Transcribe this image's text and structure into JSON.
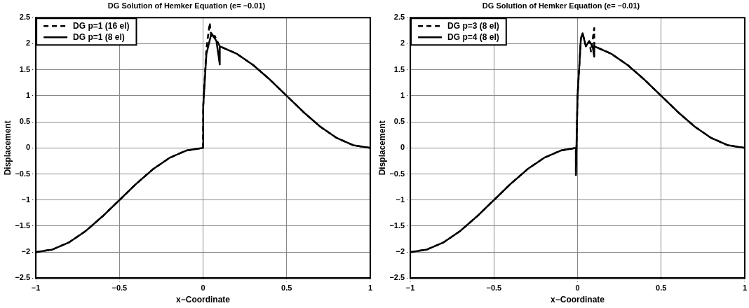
{
  "chart_data": [
    {
      "type": "line",
      "title": "DG Solution of Hemker Equation (e= −0.01)",
      "xlabel": "x−Coordinate",
      "ylabel": "Displacement",
      "xlim": [
        -1,
        1
      ],
      "ylim": [
        -2.5,
        2.5
      ],
      "xticks": [
        -1,
        -0.5,
        0,
        0.5,
        1
      ],
      "yticks": [
        -2.5,
        -2,
        -1.5,
        -1,
        -0.5,
        0,
        0.5,
        1,
        1.5,
        2,
        2.5
      ],
      "grid": true,
      "legend": "top left",
      "marker": "none",
      "series": [
        {
          "name": "DG p=1 (16 el)",
          "color": "#000000",
          "line_style": "dashed",
          "x": [
            -1,
            -0.9,
            -0.8,
            -0.7,
            -0.6,
            -0.5,
            -0.4,
            -0.3,
            -0.2,
            -0.1,
            0,
            0.001,
            0.02,
            0.04,
            0.05,
            0.07,
            0.1,
            0.2,
            0.3,
            0.4,
            0.5,
            0.6,
            0.7,
            0.8,
            0.9,
            1
          ],
          "values": [
            -2,
            -1.95,
            -1.81,
            -1.59,
            -1.31,
            -1,
            -0.69,
            -0.41,
            -0.19,
            -0.05,
            0,
            0.8,
            1.9,
            2.4,
            2.1,
            2.15,
            1.95,
            1.81,
            1.59,
            1.31,
            1,
            0.69,
            0.41,
            0.19,
            0.05,
            0
          ]
        },
        {
          "name": "DG p=1 (8 el)",
          "color": "#000000",
          "line_style": "solid",
          "x": [
            -1,
            -0.9,
            -0.8,
            -0.7,
            -0.6,
            -0.5,
            -0.4,
            -0.3,
            -0.2,
            -0.1,
            0,
            0.001,
            0.02,
            0.05,
            0.08,
            0.1,
            0.1,
            0.2,
            0.3,
            0.4,
            0.5,
            0.6,
            0.7,
            0.8,
            0.9,
            1
          ],
          "values": [
            -2,
            -1.95,
            -1.81,
            -1.59,
            -1.31,
            -1,
            -0.69,
            -0.41,
            -0.19,
            -0.05,
            0,
            0.8,
            1.8,
            2.2,
            2.05,
            1.6,
            1.95,
            1.81,
            1.59,
            1.31,
            1,
            0.69,
            0.41,
            0.19,
            0.05,
            0
          ]
        }
      ]
    },
    {
      "type": "line",
      "title": "DG Solution of Hemker Equation (e= −0.01)",
      "xlabel": "x−Coordinate",
      "ylabel": "Displacement",
      "xlim": [
        -1,
        1
      ],
      "ylim": [
        -2.5,
        2.5
      ],
      "xticks": [
        -1,
        -0.5,
        0,
        0.5,
        1
      ],
      "yticks": [
        -2.5,
        -2,
        -1.5,
        -1,
        -0.5,
        0,
        0.5,
        1,
        1.5,
        2,
        2.5
      ],
      "grid": true,
      "legend": "top left",
      "marker": "none",
      "series": [
        {
          "name": "DG p=3 (8 el)",
          "color": "#000000",
          "line_style": "dashed",
          "x": [
            -1,
            -0.9,
            -0.8,
            -0.7,
            -0.6,
            -0.5,
            -0.4,
            -0.3,
            -0.2,
            -0.1,
            -0.01,
            -0.01,
            0,
            0.02,
            0.03,
            0.05,
            0.07,
            0.08,
            0.1,
            0.1,
            0.2,
            0.3,
            0.4,
            0.5,
            0.6,
            0.7,
            0.8,
            0.9,
            1
          ],
          "values": [
            -2,
            -1.95,
            -1.81,
            -1.59,
            -1.31,
            -1,
            -0.69,
            -0.41,
            -0.19,
            -0.05,
            0,
            -0.52,
            1,
            2.1,
            2.2,
            1.95,
            2.05,
            1.85,
            2.3,
            1.95,
            1.81,
            1.59,
            1.31,
            1,
            0.69,
            0.41,
            0.19,
            0.05,
            0
          ]
        },
        {
          "name": "DG p=4 (8 el)",
          "color": "#000000",
          "line_style": "solid",
          "x": [
            -1,
            -0.9,
            -0.8,
            -0.7,
            -0.6,
            -0.5,
            -0.4,
            -0.3,
            -0.2,
            -0.1,
            -0.01,
            -0.01,
            0,
            0.02,
            0.03,
            0.05,
            0.07,
            0.09,
            0.1,
            0.1,
            0.2,
            0.3,
            0.4,
            0.5,
            0.6,
            0.7,
            0.8,
            0.9,
            1
          ],
          "values": [
            -2,
            -1.95,
            -1.81,
            -1.59,
            -1.31,
            -1,
            -0.69,
            -0.41,
            -0.19,
            -0.05,
            0,
            -0.52,
            1,
            2.1,
            2.2,
            1.95,
            2.05,
            1.95,
            1.75,
            1.95,
            1.81,
            1.59,
            1.31,
            1,
            0.69,
            0.41,
            0.19,
            0.05,
            0
          ]
        }
      ]
    }
  ]
}
